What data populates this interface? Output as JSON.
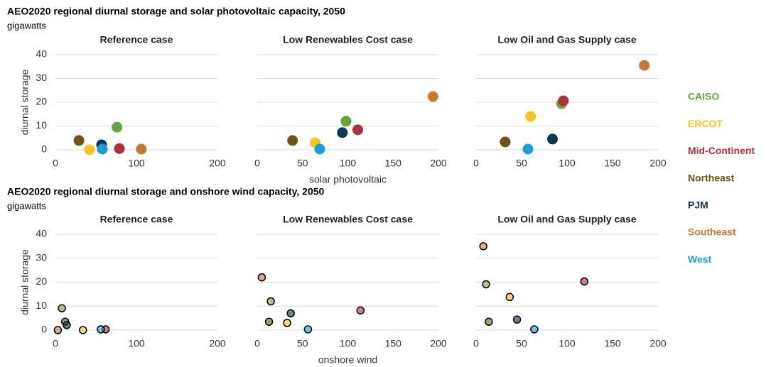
{
  "figures": [
    {
      "title": "AEO2020 regional diurnal storage and solar photovoltaic capacity, 2050",
      "subtitle": "gigawatts",
      "y_label": "diurnal storage",
      "x_label": "solar photovoltaic",
      "ylim": [
        0,
        40
      ],
      "yticks": [
        0,
        10,
        20,
        30,
        40
      ],
      "charts": [
        {
          "type": "scatter",
          "title": "Reference case",
          "xlim": [
            0,
            200
          ],
          "xticks": [
            0,
            100,
            200
          ],
          "x": [
            76,
            42,
            79,
            29,
            57,
            106,
            58
          ],
          "values": [
            9.5,
            0,
            0.5,
            3.9,
            2.1,
            0.3,
            0.3
          ]
        },
        {
          "type": "scatter",
          "title": "Low Renewables Cost case",
          "xlim": [
            0,
            200
          ],
          "xticks": [
            0,
            50,
            100,
            150,
            200
          ],
          "x": [
            98,
            64,
            111,
            39,
            94,
            194,
            69
          ],
          "values": [
            12,
            3,
            8.4,
            3.9,
            7.2,
            22.4,
            0.3
          ]
        },
        {
          "type": "scatter",
          "title": "Low Oil and Gas Supply case",
          "xlim": [
            0,
            200
          ],
          "xticks": [
            0,
            50,
            100,
            150,
            200
          ],
          "x": [
            94,
            60,
            96,
            32,
            84,
            185,
            57
          ],
          "values": [
            19.4,
            14,
            20.6,
            3.3,
            4.5,
            35.5,
            0.3
          ]
        }
      ]
    },
    {
      "title": "AEO2020 regional diurnal storage and onshore wind capacity, 2050",
      "subtitle": "gigawatts",
      "y_label": "diurnal storage",
      "x_label": "onshore wind",
      "marker_edge": "#000000",
      "ylim": [
        0,
        40
      ],
      "yticks": [
        0,
        10,
        20,
        30,
        40
      ],
      "charts": [
        {
          "type": "scatter",
          "title": "Reference case",
          "xlim": [
            0,
            200
          ],
          "xticks": [
            0,
            100,
            200
          ],
          "x": [
            8,
            34,
            62,
            12,
            14,
            3,
            56
          ],
          "values": [
            9.1,
            0,
            0.3,
            3.5,
            2.1,
            0,
            0.3
          ]
        },
        {
          "type": "scatter",
          "title": "Low Renewables Cost case",
          "xlim": [
            0,
            200
          ],
          "xticks": [
            0,
            50,
            100,
            150,
            200
          ],
          "x": [
            15,
            33,
            114,
            13,
            37,
            5,
            56
          ],
          "values": [
            12,
            3,
            8.2,
            3.5,
            7,
            22,
            0.3
          ]
        },
        {
          "type": "scatter",
          "title": "Low Oil and Gas Supply case",
          "xlim": [
            0,
            200
          ],
          "xticks": [
            0,
            50,
            100,
            150,
            200
          ],
          "x": [
            11,
            37,
            119,
            14,
            45,
            8,
            64
          ],
          "values": [
            19.1,
            13.8,
            20.3,
            3.5,
            4.4,
            35,
            0.3
          ]
        }
      ]
    }
  ],
  "legend": {
    "names": [
      "CAISO",
      "ERCOT",
      "Mid-Continent",
      "Northeast",
      "PJM",
      "Southeast",
      "West"
    ],
    "colors": [
      "#6aa13a",
      "#f7c51c",
      "#a8323f",
      "#6b5712",
      "#0e3850",
      "#c57a33",
      "#1a9fd8"
    ]
  }
}
